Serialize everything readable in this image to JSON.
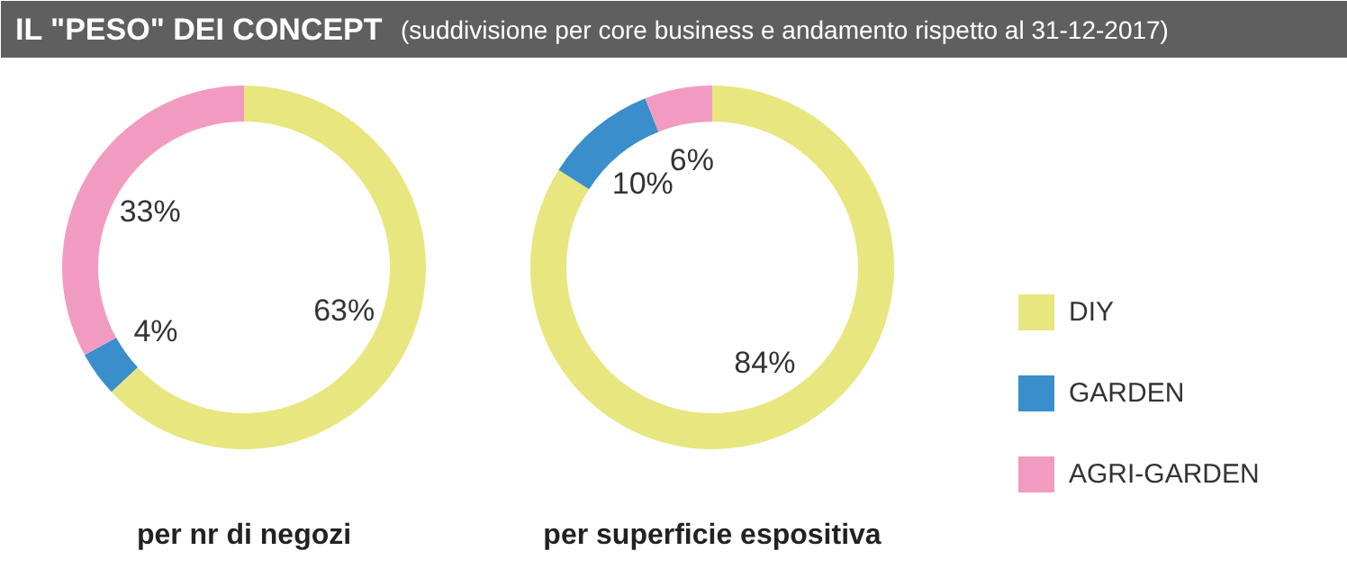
{
  "chart_data": [
    {
      "type": "other",
      "title": "IL \"PESO\" DEI CONCEPT",
      "subtitle": "(suddivisione per core business e andamento rispetto al 31-12-2017)"
    },
    {
      "type": "donut",
      "xlabel": "per nr di negozi",
      "categories": [
        "DIY",
        "GARDEN",
        "AGRI-GARDEN"
      ],
      "values": [
        63,
        4,
        33
      ],
      "colors": [
        "#e8e67f",
        "#3a8ecb",
        "#f29bc1"
      ],
      "value_labels": [
        "63%",
        "4%",
        "33%"
      ],
      "legend": "right"
    },
    {
      "type": "donut",
      "xlabel": "per superficie espositiva",
      "categories": [
        null,
        null,
        null
      ],
      "values": [
        84,
        10,
        6
      ],
      "colors": [
        "#e8e67f",
        "#3a8ecb",
        "#f29bc1"
      ],
      "value_labels": [
        "84%",
        "10%",
        "6%"
      ]
    }
  ]
}
